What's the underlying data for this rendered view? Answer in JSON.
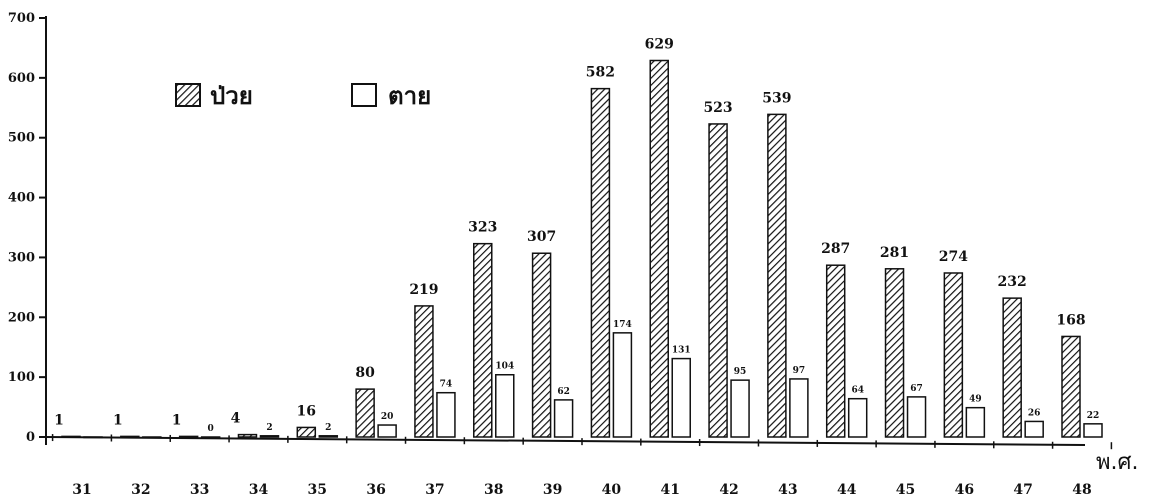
{
  "chart_data": {
    "type": "bar",
    "categories": [
      "31",
      "32",
      "33",
      "34",
      "35",
      "36",
      "37",
      "38",
      "39",
      "40",
      "41",
      "42",
      "43",
      "44",
      "45",
      "46",
      "47",
      "48"
    ],
    "series": [
      {
        "name": "ป่วย",
        "pattern": "diagonal-hatch",
        "values": [
          1,
          1,
          1,
          4,
          16,
          80,
          219,
          323,
          307,
          582,
          629,
          523,
          539,
          287,
          281,
          274,
          232,
          168
        ]
      },
      {
        "name": "ตาย",
        "pattern": "hollow",
        "values": [
          0,
          0,
          0,
          2,
          2,
          20,
          74,
          104,
          62,
          174,
          131,
          95,
          97,
          64,
          67,
          49,
          26,
          22
        ]
      }
    ],
    "value_labels": [
      [
        "1",
        "1",
        "1",
        "4",
        "16",
        "80",
        "219",
        "323",
        "307",
        "582",
        "629",
        "523",
        "539",
        "287",
        "281",
        "274",
        "232",
        "168"
      ],
      [
        "",
        "",
        "0",
        "2",
        "2",
        "20",
        "74",
        "104",
        "62",
        "174",
        "131",
        "95",
        "97",
        "64",
        "67",
        "49",
        "26",
        "22"
      ]
    ],
    "x_unit_label": "พ.ศ.",
    "yticks": [
      0,
      100,
      200,
      300,
      400,
      500,
      600,
      700
    ],
    "ylim": [
      0,
      700
    ],
    "grid": false,
    "legend_position": "top-left",
    "colors": {
      "ink": "#111111",
      "background": "#ffffff"
    }
  }
}
